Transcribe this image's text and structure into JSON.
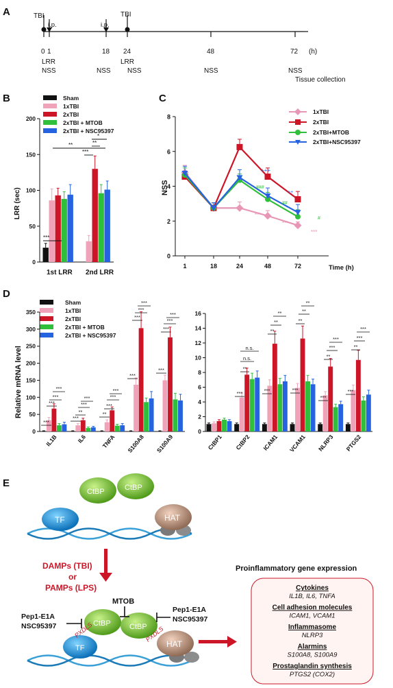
{
  "panelA": {
    "letter": "A",
    "ticks": [
      "0",
      "1",
      "18",
      "24",
      "48",
      "72"
    ],
    "unit": "(h)",
    "events": [
      {
        "t": 0,
        "label": "TBI"
      },
      {
        "t": 1,
        "label": "i.p."
      },
      {
        "t": 18,
        "label": "i.p."
      },
      {
        "t": 24,
        "label": "TBI"
      }
    ],
    "row1": [
      "LRR",
      "LRR"
    ],
    "nss": "NSS",
    "tissue": "Tissue collection"
  },
  "panelB": {
    "letter": "B",
    "legend": [
      "Sham",
      "1xTBI",
      "2xTBI",
      "2xTBI + MTOB",
      "2xTBI + NSC95397"
    ],
    "ylabel": "LRR (sec)",
    "groupLabels": [
      "1st LRR",
      "2nd LRR"
    ],
    "sig": [
      "***",
      "**",
      "***",
      "**",
      "*"
    ]
  },
  "panelC": {
    "letter": "C",
    "ylabel": "NSS",
    "xlabel": "Time (h)",
    "legend": [
      "1xTBI",
      "2xTBI",
      "2xTBI+MTOB",
      "2xTBI+NSC95397"
    ],
    "marks": [
      "***",
      "***",
      "***",
      "+++",
      "###",
      "##",
      "++",
      "#"
    ]
  },
  "panelD": {
    "letter": "D",
    "ylabel": "Relative mRNA level",
    "legend": [
      "Sham",
      "1xTBI",
      "2xTBI",
      "2xTBI + MTOB",
      "2xTBI + NSC95397"
    ],
    "sig": [
      "***",
      "**",
      "*",
      "n.s."
    ]
  },
  "panelE": {
    "letter": "E",
    "proteins": {
      "tf": "TF",
      "ctbp": "CtBP",
      "hat": "HAT",
      "motif": "PXDLS"
    },
    "trigger": [
      "DAMPs (TBI)",
      "or",
      "PAMPs (LPS)"
    ],
    "mtob": "MTOB",
    "inhibitor1": "Pep1-E1A",
    "inhibitor2": "NSC95397",
    "box_title": "Proinflammatory gene expression",
    "categories": [
      {
        "name": "Cytokines",
        "genes": "IL1B, IL6, TNFA"
      },
      {
        "name": "Cell adhesion molecules",
        "genes": "ICAM1, VCAM1"
      },
      {
        "name": "Inflammasome",
        "genes": "NLRP3"
      },
      {
        "name": "Alarmins",
        "genes": "S100A8, S100A9"
      },
      {
        "name": "Prostaglandin synthesis",
        "genes": "PTGS2 (COX2)"
      }
    ]
  },
  "chart_data": [
    {
      "type": "bar",
      "id": "B",
      "categories": [
        "1st LRR",
        "2nd LRR"
      ],
      "ylim": [
        0,
        200
      ],
      "yticks": [
        0,
        50,
        100,
        150,
        200
      ],
      "series": [
        {
          "name": "Sham",
          "color": "#111111",
          "values": [
            20,
            null
          ],
          "err": [
            6,
            null
          ]
        },
        {
          "name": "1xTBI",
          "color": "#f0a3b8",
          "values": [
            86,
            29
          ],
          "err": [
            16,
            8
          ]
        },
        {
          "name": "2xTBI",
          "color": "#cc1628",
          "values": [
            93,
            130
          ],
          "err": [
            10,
            18
          ]
        },
        {
          "name": "2xTBI + MTOB",
          "color": "#2fbf3a",
          "values": [
            88,
            96
          ],
          "err": [
            10,
            12
          ]
        },
        {
          "name": "2xTBI + NSC95397",
          "color": "#2563e0",
          "values": [
            94,
            101
          ],
          "err": [
            14,
            12
          ]
        }
      ]
    },
    {
      "type": "line",
      "id": "C",
      "x": [
        1,
        18,
        24,
        48,
        72
      ],
      "ylim": [
        0,
        8
      ],
      "yticks": [
        0,
        2,
        4,
        6,
        8
      ],
      "series": [
        {
          "name": "1xTBI",
          "color": "#e896b5",
          "marker": "diamond",
          "values": [
            4.8,
            2.75,
            2.75,
            2.3,
            1.75
          ],
          "err": [
            0.4,
            0.3,
            0.35,
            0.3,
            0.2
          ]
        },
        {
          "name": "2xTBI",
          "color": "#cc1628",
          "marker": "square",
          "values": [
            4.55,
            2.75,
            6.25,
            4.55,
            3.25
          ],
          "err": [
            0.3,
            0.3,
            0.45,
            0.5,
            0.45
          ]
        },
        {
          "name": "2xTBI+MTOB",
          "color": "#2fbf3a",
          "marker": "circle",
          "values": [
            4.65,
            2.75,
            4.35,
            3.25,
            2.25
          ],
          "err": [
            0.4,
            0.3,
            0.35,
            0.4,
            0.4
          ]
        },
        {
          "name": "2xTBI+NSC95397",
          "color": "#2563e0",
          "marker": "triangle",
          "values": [
            4.75,
            2.75,
            4.5,
            3.45,
            2.5
          ],
          "err": [
            0.4,
            0.3,
            0.45,
            0.45,
            0.45
          ]
        }
      ]
    },
    {
      "type": "bar",
      "id": "D-left",
      "categories": [
        "IL1B",
        "IL6",
        "TNFA",
        "S100A8",
        "S100A9"
      ],
      "ylim": [
        0,
        350
      ],
      "yticks": [
        0,
        50,
        100,
        150,
        200,
        250,
        300,
        350
      ],
      "series": [
        {
          "name": "Sham",
          "values": [
            1,
            1,
            1,
            1,
            1
          ],
          "err": [
            1,
            1,
            1,
            1,
            1
          ]
        },
        {
          "name": "1xTBI",
          "values": [
            33,
            18,
            27,
            137,
            150
          ],
          "err": [
            8,
            5,
            7,
            20,
            15
          ]
        },
        {
          "name": "2xTBI",
          "values": [
            67,
            33,
            62,
            303,
            276
          ],
          "err": [
            14,
            6,
            10,
            48,
            30
          ]
        },
        {
          "name": "2xTBI + MTOB",
          "values": [
            18,
            10,
            17,
            86,
            94
          ],
          "err": [
            5,
            3,
            4,
            12,
            18
          ]
        },
        {
          "name": "2xTBI + NSC95397",
          "values": [
            21,
            12,
            18,
            97,
            91
          ],
          "err": [
            6,
            3,
            5,
            20,
            18
          ]
        }
      ]
    },
    {
      "type": "bar",
      "id": "D-right",
      "categories": [
        "CtBP1",
        "CtBP2",
        "ICAM1",
        "VCAM1",
        "NLRP3",
        "PTGS2"
      ],
      "ylim": [
        0,
        16
      ],
      "yticks": [
        0,
        2,
        4,
        6,
        8,
        10,
        12,
        14,
        16
      ],
      "series": [
        {
          "name": "Sham",
          "values": [
            1,
            1,
            1,
            1,
            1,
            1
          ],
          "err": [
            0.15,
            0.15,
            0.15,
            0.15,
            0.15,
            0.15
          ]
        },
        {
          "name": "1xTBI",
          "values": [
            1.1,
            4.6,
            6.2,
            5.9,
            4.9,
            5.6
          ],
          "err": [
            0.2,
            0.6,
            0.8,
            0.6,
            0.5,
            0.7
          ]
        },
        {
          "name": "2xTBI",
          "values": [
            1.4,
            7.7,
            11.9,
            12.6,
            8.8,
            9.7
          ],
          "err": [
            0.2,
            0.9,
            1.7,
            1.7,
            1.1,
            1.3
          ]
        },
        {
          "name": "2xTBI + MTOB",
          "values": [
            1.6,
            7.1,
            6.4,
            6.8,
            3.3,
            4.2
          ],
          "err": [
            0.2,
            0.8,
            0.8,
            0.8,
            0.4,
            0.5
          ]
        },
        {
          "name": "2xTBI + NSC95397",
          "values": [
            1.4,
            7.3,
            6.8,
            6.4,
            3.7,
            5.0
          ],
          "err": [
            0.2,
            0.9,
            0.8,
            0.7,
            0.4,
            0.6
          ]
        }
      ]
    }
  ]
}
